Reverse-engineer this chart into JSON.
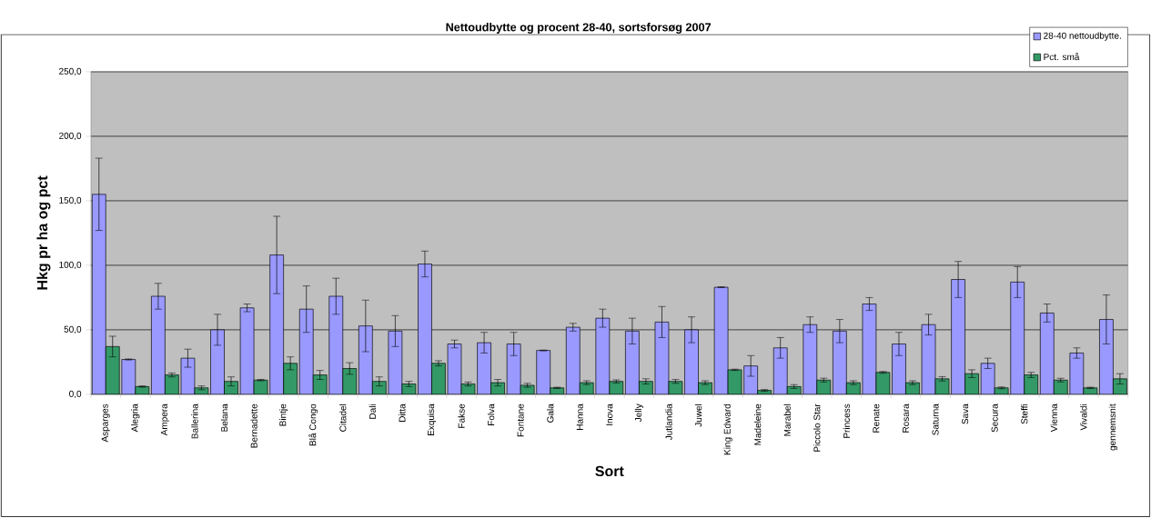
{
  "chart_data": {
    "type": "bar",
    "title": "Nettoudbytte og procent 28-40, sortsforsøg 2007",
    "xlabel": "Sort",
    "ylabel": "Hkg pr ha og pct",
    "categories": [
      "Asparges",
      "Alegria",
      "Ampera",
      "Ballerina",
      "Belana",
      "Bernadette",
      "Bintje",
      "Blå Congo",
      "Citadel",
      "Dali",
      "Ditta",
      "Exquisa",
      "Fakse",
      "Folva",
      "Fontane",
      "Gala",
      "Hanna",
      "Inova",
      "Jelly",
      "Jutlandia",
      "Juwel",
      "King Edward",
      "Madeleine",
      "Marabel",
      "Piccolo Star",
      "Princess",
      "Renate",
      "Rosara",
      "Saturna",
      "Sava",
      "Secura",
      "Steffi",
      "Vienna",
      "Vivaldi",
      "gennemsnit"
    ],
    "series": [
      {
        "name": "28-40 nettoudbytte.",
        "color": "#9999ff",
        "values": [
          155,
          27,
          76,
          28,
          50,
          67,
          108,
          66,
          76,
          53,
          49,
          101,
          39,
          40,
          39,
          34,
          52,
          59,
          49,
          56,
          50,
          83,
          22,
          36,
          54,
          49,
          70,
          39,
          54,
          89,
          24,
          87,
          63,
          32,
          58
        ],
        "errors": [
          28,
          0.4,
          10,
          7,
          12,
          3,
          30,
          18,
          14,
          20,
          12,
          10,
          3,
          8,
          9,
          0.3,
          3,
          7,
          10,
          12,
          10,
          0.3,
          8,
          8,
          6,
          9,
          5,
          9,
          8,
          14,
          4,
          12,
          7,
          4,
          19
        ]
      },
      {
        "name": "Pct. små",
        "color": "#339966",
        "values": [
          37,
          6,
          15,
          5,
          10,
          11,
          24,
          15,
          20,
          10,
          8,
          24,
          8,
          9,
          7,
          5,
          9,
          10,
          10,
          10,
          9,
          19,
          3,
          6,
          11,
          9,
          17,
          9,
          12,
          16,
          5,
          15,
          11,
          5,
          12
        ],
        "errors": [
          8,
          0.5,
          1.5,
          1.5,
          3.5,
          0.5,
          5,
          3.5,
          4.5,
          3.5,
          2,
          2,
          1.5,
          2.5,
          1.5,
          0.5,
          1.5,
          1.2,
          2,
          1.5,
          1.5,
          0.5,
          0.7,
          1.5,
          1.5,
          1.5,
          0.7,
          1.5,
          1.7,
          3,
          0.7,
          2,
          1.4,
          0.5,
          4
        ]
      }
    ],
    "ylim": [
      0,
      250
    ],
    "yticks": [
      {
        "value": 0,
        "label": "0,0"
      },
      {
        "value": 50,
        "label": "50,0"
      },
      {
        "value": 100,
        "label": "100,0"
      },
      {
        "value": 150,
        "label": "150,0"
      },
      {
        "value": 200,
        "label": "200,0"
      },
      {
        "value": 250,
        "label": "250,0"
      }
    ],
    "grid": "y",
    "legend": "top right"
  }
}
